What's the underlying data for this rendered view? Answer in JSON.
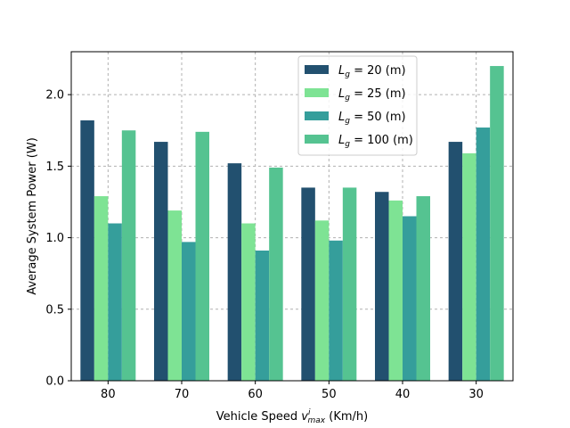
{
  "chart_data": {
    "type": "bar",
    "categories": [
      "80",
      "70",
      "60",
      "50",
      "40",
      "30"
    ],
    "series": [
      {
        "name": "L_g = 20 (m)",
        "label_main": "L",
        "label_sub": "g",
        "label_rest": " = 20 (m)",
        "color": "#22506f",
        "values": [
          1.82,
          1.67,
          1.52,
          1.35,
          1.32,
          1.67
        ]
      },
      {
        "name": "L_g = 25 (m)",
        "label_main": "L",
        "label_sub": "g",
        "label_rest": " = 25 (m)",
        "color": "#7ee394",
        "values": [
          1.29,
          1.19,
          1.1,
          1.12,
          1.26,
          1.59
        ]
      },
      {
        "name": "L_g = 50 (m)",
        "label_main": "L",
        "label_sub": "g",
        "label_rest": " = 50 (m)",
        "color": "#359e9b",
        "values": [
          1.1,
          0.97,
          0.91,
          0.98,
          1.15,
          1.77
        ]
      },
      {
        "name": "L_g = 100 (m)",
        "label_main": "L",
        "label_sub": "g",
        "label_rest": " = 100 (m)",
        "color": "#55c391",
        "values": [
          1.75,
          1.74,
          1.49,
          1.35,
          1.29,
          2.2
        ]
      }
    ],
    "ylim": [
      0,
      2.3
    ],
    "yticks": [
      0.0,
      0.5,
      1.0,
      1.5,
      2.0
    ],
    "ytick_labels": [
      "0.0",
      "0.5",
      "1.0",
      "1.5",
      "2.0"
    ],
    "ylabel": "Average System Power (W)",
    "xlabel": {
      "prefix": "Vehicle Speed ",
      "var": "v",
      "sup": "i",
      "sub": "max",
      "suffix": " (Km/h)"
    },
    "grid": true,
    "legend_position": "top-center"
  }
}
